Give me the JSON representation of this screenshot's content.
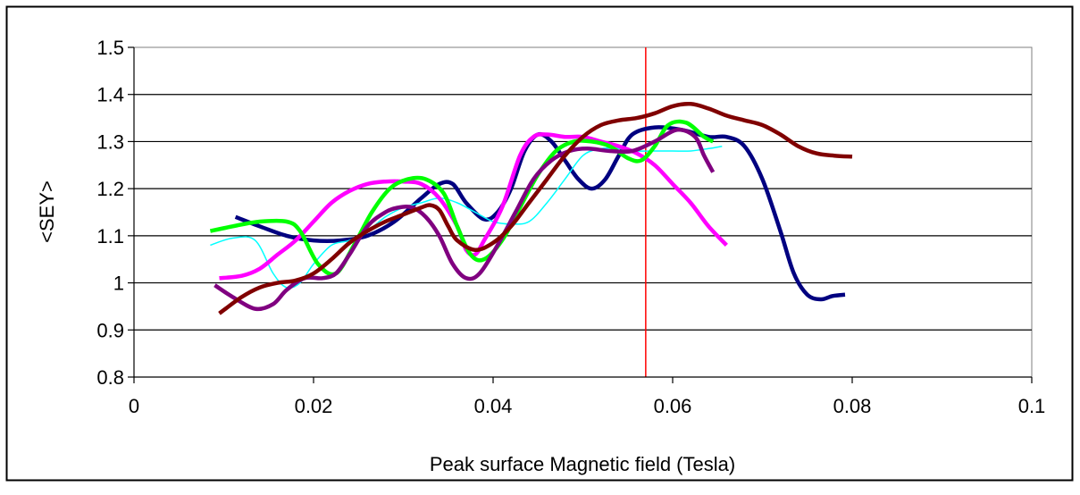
{
  "chart_data": {
    "type": "line",
    "title": "",
    "xlabel": "Peak surface Magnetic field (Tesla)",
    "ylabel": "<SEY>",
    "xlim": [
      0,
      0.1
    ],
    "ylim": [
      0.8,
      1.5
    ],
    "x_ticks": [
      0,
      0.02,
      0.04,
      0.06,
      0.08,
      0.1
    ],
    "x_tick_labels": [
      "0",
      "0.02",
      "0.04",
      "0.06",
      "0.08",
      "0.1"
    ],
    "y_ticks": [
      0.8,
      0.9,
      1.0,
      1.1,
      1.2,
      1.3,
      1.4,
      1.5
    ],
    "y_tick_labels": [
      "0.8",
      "0.9",
      "1",
      "1.1",
      "1.2",
      "1.3",
      "1.4",
      "1.5"
    ],
    "grid": "horizontal",
    "legend": "none",
    "reference_line": {
      "x": 0.057,
      "color": "#ff0000"
    },
    "series": [
      {
        "color": "#000080",
        "width": 4.5,
        "points": [
          [
            0.0113,
            1.14
          ],
          [
            0.014,
            1.12
          ],
          [
            0.017,
            1.1
          ],
          [
            0.02,
            1.09
          ],
          [
            0.023,
            1.09
          ],
          [
            0.026,
            1.1
          ],
          [
            0.029,
            1.13
          ],
          [
            0.032,
            1.18
          ],
          [
            0.034,
            1.21
          ],
          [
            0.0355,
            1.21
          ],
          [
            0.037,
            1.17
          ],
          [
            0.039,
            1.135
          ],
          [
            0.0405,
            1.15
          ],
          [
            0.042,
            1.2
          ],
          [
            0.0435,
            1.28
          ],
          [
            0.045,
            1.315
          ],
          [
            0.0465,
            1.3
          ],
          [
            0.048,
            1.26
          ],
          [
            0.0495,
            1.22
          ],
          [
            0.051,
            1.2
          ],
          [
            0.0525,
            1.22
          ],
          [
            0.054,
            1.27
          ],
          [
            0.0555,
            1.315
          ],
          [
            0.058,
            1.33
          ],
          [
            0.061,
            1.325
          ],
          [
            0.064,
            1.31
          ],
          [
            0.066,
            1.31
          ],
          [
            0.068,
            1.29
          ],
          [
            0.07,
            1.22
          ],
          [
            0.072,
            1.11
          ],
          [
            0.0735,
            1.02
          ],
          [
            0.075,
            0.975
          ],
          [
            0.0765,
            0.965
          ],
          [
            0.0778,
            0.972
          ],
          [
            0.0792,
            0.975
          ]
        ]
      },
      {
        "color": "#00ffff",
        "width": 1.5,
        "points": [
          [
            0.0085,
            1.08
          ],
          [
            0.011,
            1.095
          ],
          [
            0.0135,
            1.09
          ],
          [
            0.0155,
            1.02
          ],
          [
            0.017,
            0.99
          ],
          [
            0.0185,
            1.0
          ],
          [
            0.02,
            1.04
          ],
          [
            0.022,
            1.08
          ],
          [
            0.024,
            1.09
          ],
          [
            0.026,
            1.11
          ],
          [
            0.028,
            1.14
          ],
          [
            0.03,
            1.16
          ],
          [
            0.032,
            1.17
          ],
          [
            0.034,
            1.18
          ],
          [
            0.036,
            1.17
          ],
          [
            0.038,
            1.15
          ],
          [
            0.04,
            1.13
          ],
          [
            0.042,
            1.125
          ],
          [
            0.044,
            1.13
          ],
          [
            0.046,
            1.17
          ],
          [
            0.048,
            1.22
          ],
          [
            0.05,
            1.27
          ],
          [
            0.052,
            1.285
          ],
          [
            0.054,
            1.285
          ],
          [
            0.056,
            1.28
          ],
          [
            0.058,
            1.28
          ],
          [
            0.06,
            1.28
          ],
          [
            0.062,
            1.28
          ],
          [
            0.064,
            1.285
          ],
          [
            0.0655,
            1.29
          ]
        ]
      },
      {
        "color": "#ff00ff",
        "width": 4.5,
        "points": [
          [
            0.0095,
            1.01
          ],
          [
            0.012,
            1.015
          ],
          [
            0.014,
            1.03
          ],
          [
            0.016,
            1.06
          ],
          [
            0.018,
            1.09
          ],
          [
            0.02,
            1.13
          ],
          [
            0.022,
            1.17
          ],
          [
            0.024,
            1.195
          ],
          [
            0.026,
            1.21
          ],
          [
            0.028,
            1.215
          ],
          [
            0.03,
            1.215
          ],
          [
            0.032,
            1.21
          ],
          [
            0.034,
            1.18
          ],
          [
            0.036,
            1.12
          ],
          [
            0.037,
            1.07
          ],
          [
            0.038,
            1.06
          ],
          [
            0.039,
            1.09
          ],
          [
            0.041,
            1.16
          ],
          [
            0.043,
            1.27
          ],
          [
            0.0445,
            1.31
          ],
          [
            0.046,
            1.315
          ],
          [
            0.048,
            1.31
          ],
          [
            0.05,
            1.31
          ],
          [
            0.052,
            1.3
          ],
          [
            0.054,
            1.29
          ],
          [
            0.056,
            1.275
          ],
          [
            0.058,
            1.25
          ],
          [
            0.06,
            1.21
          ],
          [
            0.062,
            1.17
          ],
          [
            0.064,
            1.12
          ],
          [
            0.066,
            1.08
          ]
        ]
      },
      {
        "color": "#00ff00",
        "width": 4.5,
        "points": [
          [
            0.0085,
            1.11
          ],
          [
            0.011,
            1.12
          ],
          [
            0.014,
            1.13
          ],
          [
            0.017,
            1.13
          ],
          [
            0.0185,
            1.11
          ],
          [
            0.0205,
            1.04
          ],
          [
            0.0225,
            1.02
          ],
          [
            0.0245,
            1.08
          ],
          [
            0.0265,
            1.15
          ],
          [
            0.0285,
            1.2
          ],
          [
            0.0305,
            1.22
          ],
          [
            0.0325,
            1.22
          ],
          [
            0.0345,
            1.19
          ],
          [
            0.036,
            1.12
          ],
          [
            0.0375,
            1.06
          ],
          [
            0.039,
            1.05
          ],
          [
            0.041,
            1.09
          ],
          [
            0.043,
            1.16
          ],
          [
            0.045,
            1.23
          ],
          [
            0.047,
            1.28
          ],
          [
            0.049,
            1.3
          ],
          [
            0.051,
            1.3
          ],
          [
            0.053,
            1.29
          ],
          [
            0.055,
            1.265
          ],
          [
            0.0565,
            1.26
          ],
          [
            0.058,
            1.29
          ],
          [
            0.0595,
            1.335
          ],
          [
            0.0615,
            1.34
          ],
          [
            0.0635,
            1.31
          ],
          [
            0.0645,
            1.3
          ]
        ]
      },
      {
        "color": "#800080",
        "width": 4.5,
        "points": [
          [
            0.009,
            0.995
          ],
          [
            0.011,
            0.97
          ],
          [
            0.0135,
            0.945
          ],
          [
            0.0155,
            0.955
          ],
          [
            0.017,
            0.985
          ],
          [
            0.019,
            1.01
          ],
          [
            0.021,
            1.01
          ],
          [
            0.0225,
            1.02
          ],
          [
            0.024,
            1.06
          ],
          [
            0.026,
            1.12
          ],
          [
            0.028,
            1.15
          ],
          [
            0.0295,
            1.16
          ],
          [
            0.031,
            1.16
          ],
          [
            0.0325,
            1.14
          ],
          [
            0.034,
            1.1
          ],
          [
            0.0355,
            1.04
          ],
          [
            0.037,
            1.01
          ],
          [
            0.0385,
            1.02
          ],
          [
            0.0405,
            1.08
          ],
          [
            0.0425,
            1.15
          ],
          [
            0.0445,
            1.22
          ],
          [
            0.0465,
            1.26
          ],
          [
            0.0485,
            1.28
          ],
          [
            0.0505,
            1.285
          ],
          [
            0.053,
            1.28
          ],
          [
            0.0555,
            1.28
          ],
          [
            0.058,
            1.3
          ],
          [
            0.0605,
            1.325
          ],
          [
            0.0625,
            1.31
          ],
          [
            0.0635,
            1.27
          ],
          [
            0.0645,
            1.235
          ]
        ]
      },
      {
        "color": "#800000",
        "width": 4.5,
        "points": [
          [
            0.0095,
            0.935
          ],
          [
            0.012,
            0.97
          ],
          [
            0.014,
            0.99
          ],
          [
            0.016,
            1.0
          ],
          [
            0.018,
            1.005
          ],
          [
            0.02,
            1.02
          ],
          [
            0.022,
            1.05
          ],
          [
            0.024,
            1.085
          ],
          [
            0.026,
            1.11
          ],
          [
            0.028,
            1.13
          ],
          [
            0.03,
            1.145
          ],
          [
            0.032,
            1.16
          ],
          [
            0.033,
            1.165
          ],
          [
            0.034,
            1.155
          ],
          [
            0.035,
            1.12
          ],
          [
            0.036,
            1.09
          ],
          [
            0.038,
            1.07
          ],
          [
            0.04,
            1.085
          ],
          [
            0.042,
            1.12
          ],
          [
            0.044,
            1.17
          ],
          [
            0.046,
            1.22
          ],
          [
            0.048,
            1.27
          ],
          [
            0.05,
            1.31
          ],
          [
            0.052,
            1.335
          ],
          [
            0.054,
            1.345
          ],
          [
            0.056,
            1.35
          ],
          [
            0.058,
            1.36
          ],
          [
            0.06,
            1.375
          ],
          [
            0.062,
            1.38
          ],
          [
            0.064,
            1.37
          ],
          [
            0.066,
            1.355
          ],
          [
            0.068,
            1.345
          ],
          [
            0.07,
            1.335
          ],
          [
            0.072,
            1.315
          ],
          [
            0.074,
            1.29
          ],
          [
            0.076,
            1.275
          ],
          [
            0.078,
            1.27
          ],
          [
            0.08,
            1.268
          ]
        ]
      }
    ]
  }
}
